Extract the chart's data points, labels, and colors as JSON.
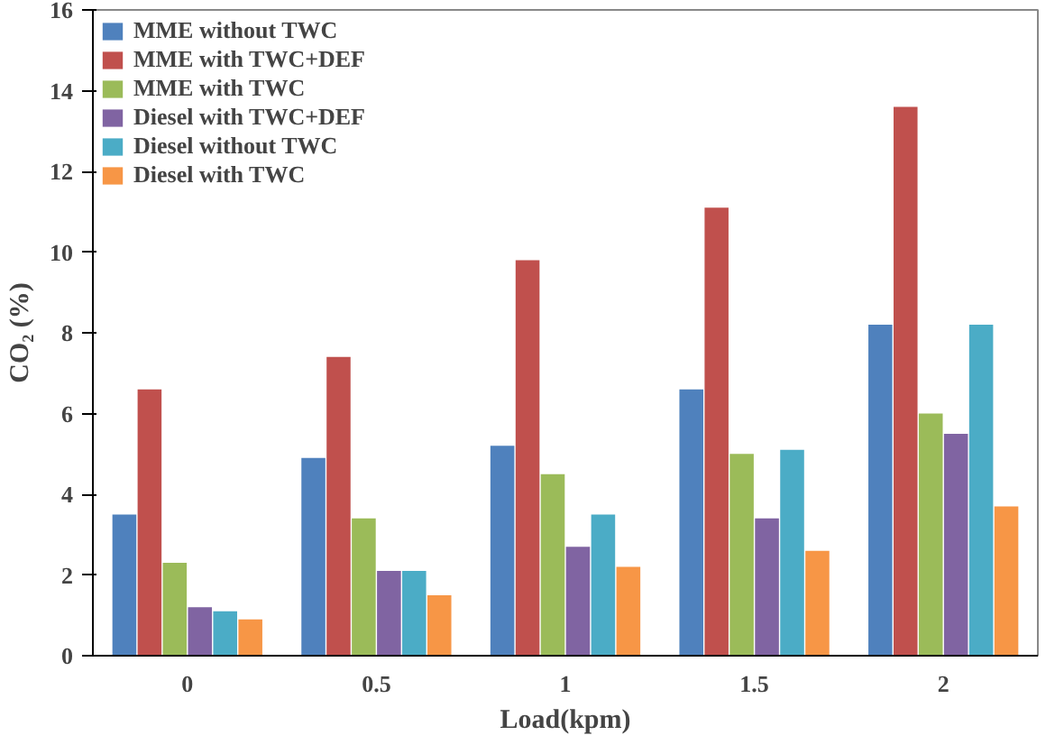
{
  "chart_data": {
    "type": "bar",
    "xlabel": "Load(kpm)",
    "ylabel": "CO₂ (%)",
    "categories": [
      "0",
      "0.5",
      "1",
      "1.5",
      "2"
    ],
    "ylim": [
      0,
      16
    ],
    "yticks": [
      0,
      2,
      4,
      6,
      8,
      10,
      12,
      14,
      16
    ],
    "grid": false,
    "legend": "top left",
    "series": [
      {
        "name": "MME without TWC",
        "color": "#4f81bd",
        "values": [
          3.5,
          4.9,
          5.2,
          6.6,
          8.2
        ]
      },
      {
        "name": "MME with TWC+DEF",
        "color": "#c0504d",
        "values": [
          6.6,
          7.4,
          9.8,
          11.1,
          13.6
        ]
      },
      {
        "name": "MME with TWC",
        "color": "#9bbb59",
        "values": [
          2.3,
          3.4,
          4.5,
          5.0,
          6.0
        ]
      },
      {
        "name": "Diesel with TWC+DEF",
        "color": "#8064a2",
        "values": [
          1.2,
          2.1,
          2.7,
          3.4,
          5.5
        ]
      },
      {
        "name": "Diesel without TWC",
        "color": "#4bacc6",
        "values": [
          1.1,
          2.1,
          3.5,
          5.1,
          8.2
        ]
      },
      {
        "name": "Diesel with TWC",
        "color": "#f79646",
        "values": [
          0.9,
          1.5,
          2.2,
          2.6,
          3.7
        ]
      }
    ]
  }
}
